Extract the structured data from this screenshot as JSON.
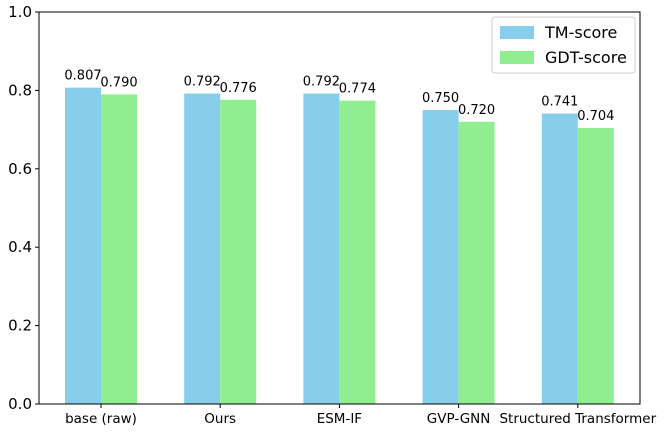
{
  "chart_data": {
    "type": "bar",
    "categories": [
      "base (raw)",
      "Ours",
      "ESM-IF",
      "GVP-GNN",
      "Structured Transformer"
    ],
    "series": [
      {
        "name": "TM-score",
        "color": "#87ceeb",
        "values": [
          0.807,
          0.792,
          0.792,
          0.75,
          0.741
        ],
        "labels": [
          "0.807",
          "0.792",
          "0.792",
          "0.750",
          "0.741"
        ]
      },
      {
        "name": "GDT-score",
        "color": "#90ee90",
        "values": [
          0.79,
          0.776,
          0.774,
          0.72,
          0.704
        ],
        "labels": [
          "0.790",
          "0.776",
          "0.774",
          "0.720",
          "0.704"
        ]
      }
    ],
    "ylim": [
      0,
      1.0
    ],
    "yticks": [
      "0.0",
      "0.2",
      "0.4",
      "0.6",
      "0.8",
      "1.0"
    ],
    "grid": false,
    "legend_position": "top-right"
  }
}
